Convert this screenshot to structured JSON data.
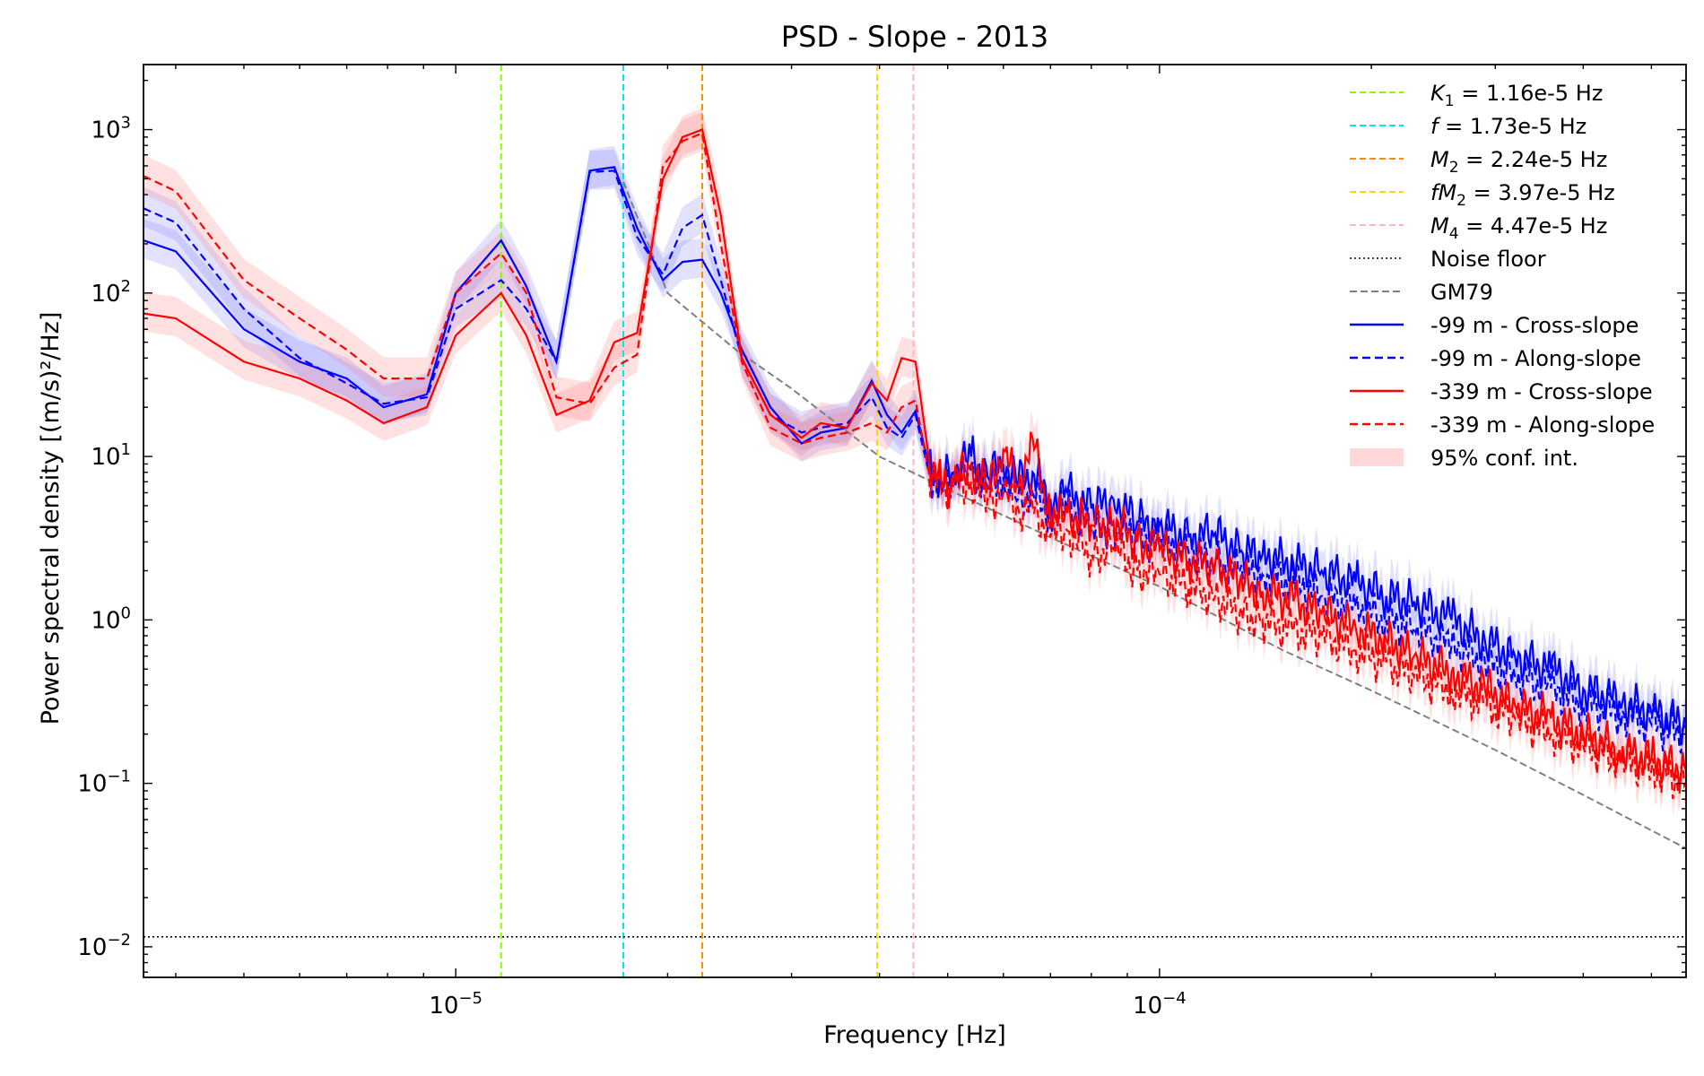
{
  "chart_data": {
    "type": "line",
    "title": "PSD - Slope - 2013",
    "xlabel": "Frequency [Hz]",
    "ylabel": "Power spectral density [(m/s)²/Hz]",
    "xscale": "log",
    "yscale": "log",
    "xlim": [
      3.6e-06,
      0.00056
    ],
    "ylim": [
      0.0065,
      2500
    ],
    "xticks": [
      {
        "value": 1e-05,
        "base": "10",
        "exp": "−5"
      },
      {
        "value": 0.0001,
        "base": "10",
        "exp": "−4"
      }
    ],
    "yticks": [
      {
        "value": 0.01,
        "base": "10",
        "exp": "−2"
      },
      {
        "value": 0.1,
        "base": "10",
        "exp": "−1"
      },
      {
        "value": 1,
        "base": "10",
        "exp": "0"
      },
      {
        "value": 10,
        "base": "10",
        "exp": "1"
      },
      {
        "value": 100,
        "base": "10",
        "exp": "2"
      },
      {
        "value": 1000,
        "base": "10",
        "exp": "3"
      }
    ],
    "grid": false,
    "legend_position": "top-right",
    "vlines": [
      {
        "x": 1.16e-05,
        "color": "#7fff00",
        "label_sym": "K",
        "label_sub": "1",
        "label_rest": " = 1.16e-5 Hz"
      },
      {
        "x": 1.73e-05,
        "color": "#00e5ee",
        "label_sym": "f",
        "label_sub": "",
        "label_rest": " = 1.73e-5 Hz"
      },
      {
        "x": 2.24e-05,
        "color": "#ff8c00",
        "label_sym": "M",
        "label_sub": "2",
        "label_rest": " = 2.24e-5 Hz"
      },
      {
        "x": 3.97e-05,
        "color": "#ffd700",
        "label_sym": "fM",
        "label_sub": "2",
        "label_rest": " = 3.97e-5 Hz"
      },
      {
        "x": 4.47e-05,
        "color": "#ffb6c1",
        "label_sym": "M",
        "label_sub": "4",
        "label_rest": " = 4.47e-5 Hz"
      }
    ],
    "noise_floor": {
      "label": "Noise floor",
      "value": 0.0115,
      "color": "#000000"
    },
    "gm79": {
      "label": "GM79",
      "color": "#808080",
      "x": [
        1.73e-05,
        2e-05,
        2.5e-05,
        3e-05,
        4e-05,
        5e-05,
        7e-05,
        0.0001,
        0.00015,
        0.0002,
        0.0003,
        0.0004,
        0.00056
      ],
      "y": [
        480,
        100,
        45,
        26,
        10,
        6.3,
        3.2,
        1.6,
        0.65,
        0.37,
        0.16,
        0.085,
        0.04
      ]
    },
    "ci_label": "95% conf. int.",
    "series": [
      {
        "name": "-99 m - Cross-slope",
        "color": "#0000ff",
        "dash": false,
        "x": [
          3.6e-06,
          4e-06,
          5e-06,
          6e-06,
          7e-06,
          7.9e-06,
          9.1e-06,
          1e-05,
          1.16e-05,
          1.26e-05,
          1.39e-05,
          1.55e-05,
          1.68e-05,
          1.81e-05,
          1.97e-05,
          2.1e-05,
          2.24e-05,
          2.38e-05,
          2.55e-05,
          2.8e-05,
          3.1e-05,
          3.3e-05,
          3.6e-05,
          3.9e-05,
          4.1e-05,
          4.3e-05,
          4.5e-05,
          4.7e-05,
          4.9e-05,
          5.1e-05,
          5.4e-05,
          5.7e-05,
          6e-05,
          6.3e-05,
          6.6e-05,
          7e-05,
          7.4e-05,
          8e-05,
          8.6e-05,
          9.3e-05,
          0.0001,
          0.00011,
          0.00012,
          0.00013,
          0.00014,
          0.000155,
          0.00017,
          0.00019,
          0.00021,
          0.00023,
          0.00026,
          0.00029,
          0.00032,
          0.00036,
          0.0004,
          0.00045,
          0.0005,
          0.00056
        ],
        "y": [
          210,
          180,
          60,
          38,
          30,
          20,
          24,
          100,
          210,
          110,
          38,
          560,
          590,
          250,
          120,
          155,
          160,
          100,
          45,
          20,
          12,
          14,
          15,
          29,
          18,
          14,
          19,
          9,
          7,
          8,
          10,
          7.5,
          9,
          7,
          8,
          5.5,
          6,
          4.8,
          5.5,
          4,
          3.8,
          3.2,
          3.4,
          2.6,
          2.5,
          2.2,
          2,
          1.7,
          1.4,
          1.3,
          1,
          0.75,
          0.6,
          0.5,
          0.38,
          0.32,
          0.27,
          0.23
        ]
      },
      {
        "name": "-99 m - Along-slope",
        "color": "#0000ff",
        "dash": true,
        "x": [
          3.6e-06,
          4e-06,
          5e-06,
          6e-06,
          7e-06,
          7.9e-06,
          9.1e-06,
          1e-05,
          1.16e-05,
          1.26e-05,
          1.39e-05,
          1.55e-05,
          1.68e-05,
          1.81e-05,
          1.97e-05,
          2.1e-05,
          2.24e-05,
          2.38e-05,
          2.55e-05,
          2.8e-05,
          3.1e-05,
          3.3e-05,
          3.6e-05,
          3.9e-05,
          4.1e-05,
          4.3e-05,
          4.5e-05,
          4.7e-05,
          4.9e-05,
          5.1e-05,
          5.4e-05,
          5.7e-05,
          6e-05,
          6.3e-05,
          6.6e-05,
          7e-05,
          7.4e-05,
          8e-05,
          8.6e-05,
          9.3e-05,
          0.0001,
          0.00011,
          0.00012,
          0.00013,
          0.00014,
          0.000155,
          0.00017,
          0.00019,
          0.00021,
          0.00023,
          0.00026,
          0.00029,
          0.00032,
          0.00036,
          0.0004,
          0.00045,
          0.0005,
          0.00056
        ],
        "y": [
          330,
          270,
          80,
          40,
          28,
          21,
          23,
          80,
          120,
          80,
          38,
          550,
          560,
          220,
          130,
          250,
          300,
          120,
          40,
          18,
          14,
          15,
          16,
          23,
          15,
          13,
          18,
          8,
          6.5,
          7,
          8,
          6.5,
          7.5,
          5.5,
          6,
          4.5,
          4.8,
          3.5,
          3.8,
          3.2,
          3,
          2.6,
          2.2,
          2,
          1.9,
          1.7,
          1.4,
          1.2,
          1,
          0.9,
          0.7,
          0.55,
          0.45,
          0.38,
          0.3,
          0.27,
          0.23,
          0.2
        ]
      },
      {
        "name": "-339 m - Cross-slope",
        "color": "#ff0000",
        "dash": false,
        "x": [
          3.6e-06,
          4e-06,
          5e-06,
          6e-06,
          7e-06,
          7.9e-06,
          9.1e-06,
          1e-05,
          1.16e-05,
          1.26e-05,
          1.39e-05,
          1.55e-05,
          1.68e-05,
          1.81e-05,
          1.97e-05,
          2.1e-05,
          2.24e-05,
          2.38e-05,
          2.55e-05,
          2.8e-05,
          3.1e-05,
          3.3e-05,
          3.6e-05,
          3.9e-05,
          4.1e-05,
          4.3e-05,
          4.5e-05,
          4.7e-05,
          4.9e-05,
          5.1e-05,
          5.4e-05,
          5.7e-05,
          6e-05,
          6.3e-05,
          6.6e-05,
          7e-05,
          7.4e-05,
          8e-05,
          8.6e-05,
          9.3e-05,
          0.0001,
          0.00011,
          0.00012,
          0.00013,
          0.00014,
          0.000155,
          0.00017,
          0.00019,
          0.00021,
          0.00023,
          0.00026,
          0.00029,
          0.00032,
          0.00036,
          0.0004,
          0.00045,
          0.0005,
          0.00056
        ],
        "y": [
          75,
          70,
          38,
          30,
          22,
          16,
          20,
          55,
          100,
          55,
          18,
          22,
          50,
          57,
          500,
          900,
          1000,
          300,
          40,
          18,
          13,
          16,
          15,
          28,
          22,
          40,
          38,
          10,
          6.5,
          7,
          9,
          6.5,
          11,
          6.5,
          13,
          4.2,
          4.5,
          3.8,
          4,
          3,
          2.7,
          2.3,
          2.2,
          1.7,
          1.5,
          1.3,
          1.1,
          0.9,
          0.75,
          0.6,
          0.48,
          0.38,
          0.3,
          0.25,
          0.2,
          0.16,
          0.14,
          0.12
        ]
      },
      {
        "name": "-339 m - Along-slope",
        "color": "#ff0000",
        "dash": true,
        "x": [
          3.6e-06,
          4e-06,
          5e-06,
          6e-06,
          7e-06,
          7.9e-06,
          9.1e-06,
          1e-05,
          1.16e-05,
          1.26e-05,
          1.39e-05,
          1.55e-05,
          1.68e-05,
          1.81e-05,
          1.97e-05,
          2.1e-05,
          2.24e-05,
          2.38e-05,
          2.55e-05,
          2.8e-05,
          3.1e-05,
          3.3e-05,
          3.6e-05,
          3.9e-05,
          4.1e-05,
          4.3e-05,
          4.5e-05,
          4.7e-05,
          4.9e-05,
          5.1e-05,
          5.4e-05,
          5.7e-05,
          6e-05,
          6.3e-05,
          6.6e-05,
          7e-05,
          7.4e-05,
          8e-05,
          8.6e-05,
          9.3e-05,
          0.0001,
          0.00011,
          0.00012,
          0.00013,
          0.00014,
          0.000155,
          0.00017,
          0.00019,
          0.00021,
          0.00023,
          0.00026,
          0.00029,
          0.00032,
          0.00036,
          0.0004,
          0.00045,
          0.0005,
          0.00056
        ],
        "y": [
          520,
          420,
          120,
          70,
          45,
          30,
          30,
          100,
          175,
          100,
          23,
          21,
          35,
          42,
          600,
          850,
          950,
          200,
          38,
          15,
          12,
          13,
          14,
          16,
          14,
          20,
          22,
          8,
          6,
          6.5,
          7,
          5.5,
          6,
          4.8,
          5,
          3.2,
          3.5,
          2.5,
          2.8,
          2,
          1.9,
          1.6,
          1.4,
          1.1,
          1,
          0.85,
          0.8,
          0.65,
          0.55,
          0.45,
          0.38,
          0.3,
          0.25,
          0.2,
          0.17,
          0.14,
          0.12,
          0.1
        ]
      }
    ]
  }
}
